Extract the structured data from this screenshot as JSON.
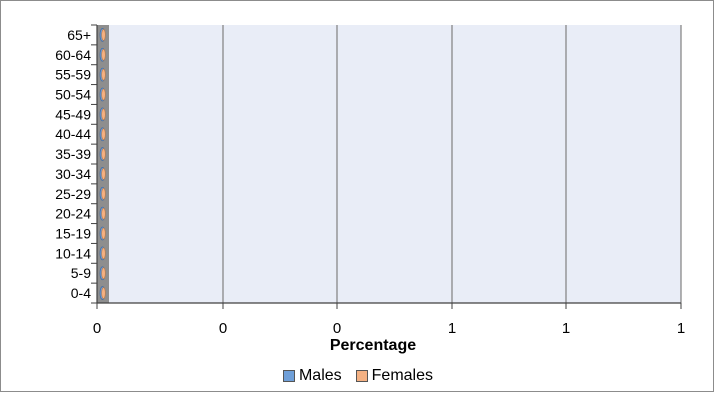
{
  "chart_data": {
    "type": "bar",
    "orientation": "horizontal",
    "layout": "population-pyramid",
    "categories": [
      "0-4",
      "5-9",
      "10-14",
      "15-19",
      "20-24",
      "25-29",
      "30-34",
      "35-39",
      "40-44",
      "45-49",
      "50-54",
      "55-59",
      "60-64",
      "65+"
    ],
    "series": [
      {
        "name": "Males",
        "color": "#6f9fd8",
        "values": [
          0,
          0,
          0,
          0,
          0,
          0,
          0,
          0,
          0,
          0,
          0,
          0,
          0,
          0
        ]
      },
      {
        "name": "Females",
        "color": "#f4b183",
        "values": [
          0,
          0,
          0,
          0,
          0,
          0,
          0,
          0,
          0,
          0,
          0,
          0,
          0,
          0
        ]
      }
    ],
    "xlabel": "Percentage",
    "xtick_labels": [
      "0",
      "0",
      "0",
      "1",
      "1",
      "1"
    ],
    "grid": true,
    "plot_background": "#e9edf7",
    "legend_position": "bottom"
  }
}
